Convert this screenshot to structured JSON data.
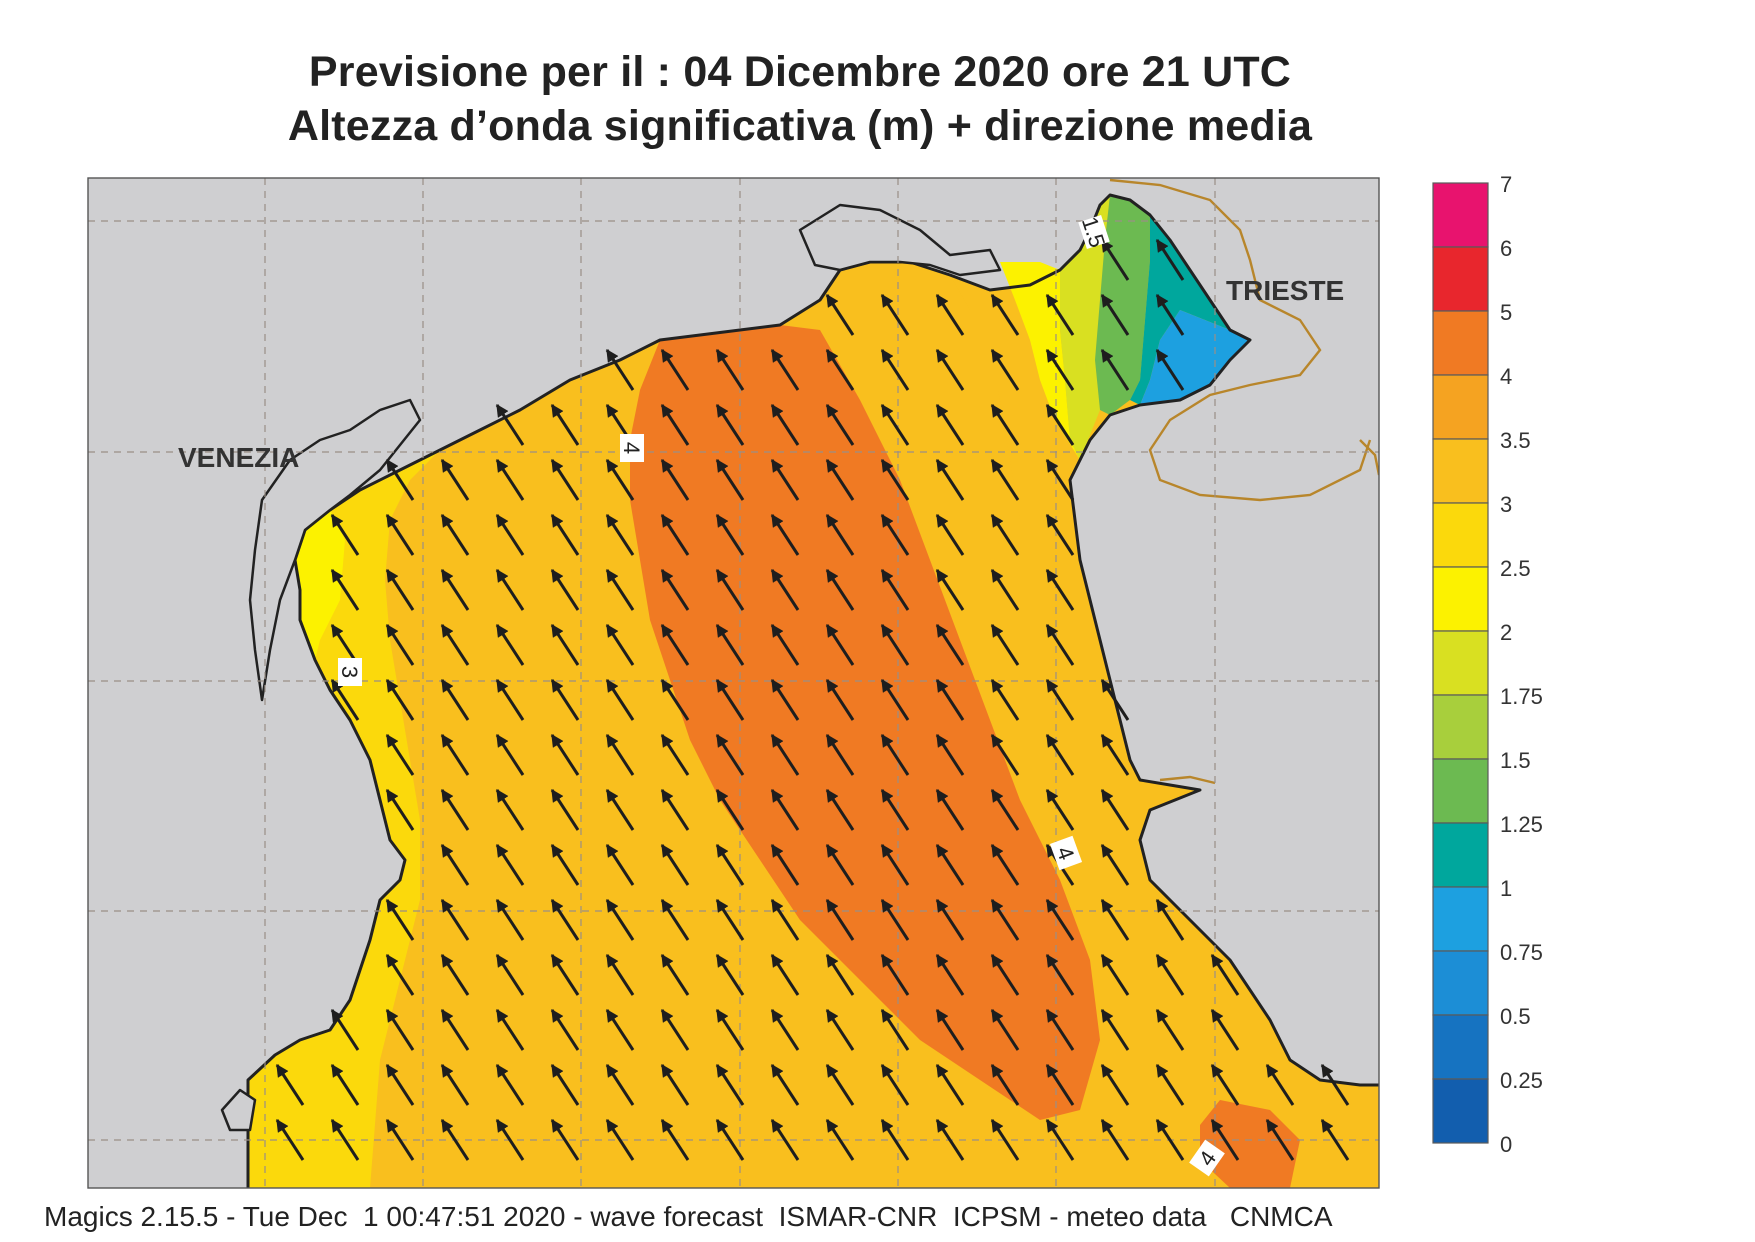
{
  "title": {
    "line1": "Previsione per il  :  04 Dicembre  2020   ore 21 UTC",
    "line2": "Altezza d’onda significativa (m) + direzione media"
  },
  "map": {
    "places": [
      "VENEZIA",
      "TRIESTE"
    ],
    "contour_labels": [
      "1.5",
      "4",
      "3",
      "4",
      "4"
    ],
    "arrow_direction": "north-west",
    "colors": {
      "land": "#cfcfd1",
      "border": "#b8862b",
      "coast": "#222222",
      "grid": "#9a8f86"
    }
  },
  "legend": {
    "ticks": [
      "7",
      "6",
      "5",
      "4",
      "3.5",
      "3",
      "2.5",
      "2",
      "1.75",
      "1.5",
      "1.25",
      "1",
      "0.75",
      "0.5",
      "0.25",
      "0"
    ],
    "colors": [
      "#e8136e",
      "#e8262d",
      "#f07a23",
      "#f5a321",
      "#f9bf1e",
      "#fbd90c",
      "#fcf200",
      "#d9e021",
      "#a8cf3c",
      "#6cba51",
      "#00a79d",
      "#1da0e0",
      "#1c8ed6",
      "#1673c1",
      "#125eae"
    ]
  },
  "footer": "Magics 2.15.5 - Tue Dec  1 00:47:51 2020 - wave forecast  ISMAR-CNR  ICPSM - meteo data   CNMCA"
}
